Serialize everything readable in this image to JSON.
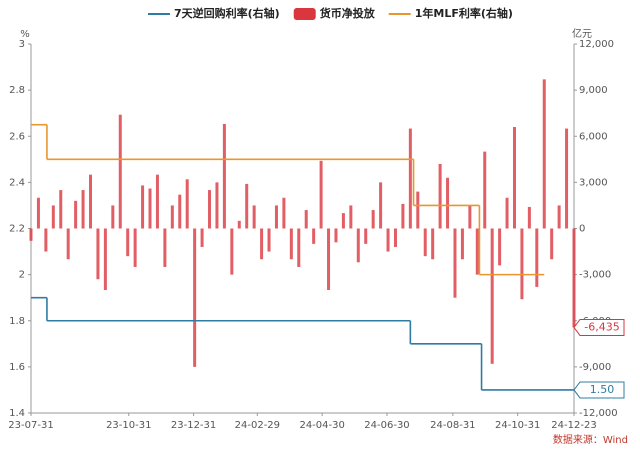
{
  "chart_data": {
    "type": "bar-line",
    "y_unit": "%",
    "y2_unit": "亿元",
    "source": "数据来源：Wind",
    "xlim": [
      "23-07-31",
      "24-12-23"
    ],
    "xticks": [
      "23-07-31",
      "23-10-31",
      "23-12-31",
      "24-02-29",
      "24-04-30",
      "24-06-30",
      "24-08-31",
      "24-10-31",
      "24-12-23"
    ],
    "ylim": [
      1.4,
      3
    ],
    "yticks": [
      1.4,
      1.6,
      1.8,
      2,
      2.2,
      2.4,
      2.6,
      2.8,
      3
    ],
    "y2lim": [
      -12000,
      12000
    ],
    "y2ticks": [
      {
        "value": -12000,
        "label": "-12,000"
      },
      {
        "value": -9000,
        "label": "-9,000"
      },
      {
        "value": -6000,
        "label": "-6,000"
      },
      {
        "value": -3000,
        "label": "-3,000"
      },
      0,
      {
        "value": 3000,
        "label": "3,000"
      },
      {
        "value": 6000,
        "label": "6,000"
      },
      {
        "value": 9000,
        "label": "9,000"
      },
      {
        "value": 12000,
        "label": "12,000"
      }
    ],
    "step": true,
    "legend": "top",
    "series": [
      {
        "name": "7天逆回购利率(右轴)",
        "type": "line",
        "color": "#2f7ca3",
        "x": [
          "23-07-31",
          "23-08-15",
          "24-07-22",
          "24-09-27",
          "24-12-23"
        ],
        "values": [
          1.9,
          1.8,
          1.7,
          1.5,
          1.5
        ],
        "value_labels": [
          null,
          null,
          null,
          null,
          "1.50"
        ]
      },
      {
        "name": "货币净投放",
        "type": "bar",
        "axis": "y2",
        "color": "#d9363e",
        "x": [
          "23-07-31",
          "23-08-07",
          "23-08-14",
          "23-08-21",
          "23-08-28",
          "23-09-04",
          "23-09-11",
          "23-09-18",
          "23-09-25",
          "23-10-02",
          "23-10-09",
          "23-10-16",
          "23-10-23",
          "23-10-30",
          "23-11-06",
          "23-11-13",
          "23-11-20",
          "23-11-27",
          "23-12-04",
          "23-12-11",
          "23-12-18",
          "23-12-25",
          "24-01-01",
          "24-01-08",
          "24-01-15",
          "24-01-22",
          "24-01-29",
          "24-02-05",
          "24-02-12",
          "24-02-19",
          "24-02-26",
          "24-03-04",
          "24-03-11",
          "24-03-18",
          "24-03-25",
          "24-04-01",
          "24-04-08",
          "24-04-15",
          "24-04-22",
          "24-04-29",
          "24-05-06",
          "24-05-13",
          "24-05-20",
          "24-05-27",
          "24-06-03",
          "24-06-10",
          "24-06-17",
          "24-06-24",
          "24-07-01",
          "24-07-08",
          "24-07-15",
          "24-07-22",
          "24-07-29",
          "24-08-05",
          "24-08-12",
          "24-08-19",
          "24-08-26",
          "24-09-02",
          "24-09-09",
          "24-09-16",
          "24-09-23",
          "24-09-30",
          "24-10-07",
          "24-10-14",
          "24-10-21",
          "24-10-28",
          "24-11-04",
          "24-11-11",
          "24-11-18",
          "24-11-25",
          "24-12-02",
          "24-12-09",
          "24-12-16",
          "24-12-23"
        ],
        "values": [
          -800,
          2000,
          -1500,
          1500,
          2500,
          -2000,
          1800,
          2500,
          3500,
          -3300,
          -4000,
          1500,
          7400,
          -1800,
          -2500,
          2800,
          2600,
          3500,
          -2500,
          1500,
          2200,
          3200,
          -9000,
          -1200,
          2500,
          3000,
          6800,
          -3000,
          500,
          2900,
          1500,
          -2000,
          -1500,
          1500,
          2000,
          -2000,
          -2500,
          1200,
          -1000,
          4400,
          -4000,
          -900,
          1000,
          1500,
          -2200,
          -1000,
          1200,
          3000,
          -1500,
          -1200,
          1600,
          6500,
          2400,
          -1800,
          -2000,
          4200,
          3300,
          -4500,
          -2000,
          1500,
          -3000,
          5000,
          -8800,
          -2400,
          2000,
          6600,
          -4600,
          1400,
          -3800,
          9700,
          -2000,
          1500,
          6500,
          -6435
        ],
        "value_labels": [
          null,
          null,
          null,
          null,
          null,
          null,
          null,
          null,
          null,
          null,
          null,
          null,
          null,
          null,
          null,
          null,
          null,
          null,
          null,
          null,
          null,
          null,
          null,
          null,
          null,
          null,
          null,
          null,
          null,
          null,
          null,
          null,
          null,
          null,
          null,
          null,
          null,
          null,
          null,
          null,
          null,
          null,
          null,
          null,
          null,
          null,
          null,
          null,
          null,
          null,
          null,
          null,
          null,
          null,
          null,
          null,
          null,
          null,
          null,
          null,
          null,
          null,
          null,
          null,
          null,
          null,
          null,
          null,
          null,
          null,
          null,
          null,
          null,
          "-6,435"
        ]
      },
      {
        "name": "1年MLF利率(右轴)",
        "type": "line",
        "color": "#e8962e",
        "x": [
          "23-07-31",
          "23-08-15",
          "24-07-25",
          "24-09-25",
          "24-11-25"
        ],
        "values": [
          2.65,
          2.5,
          2.3,
          2,
          2
        ]
      }
    ]
  }
}
